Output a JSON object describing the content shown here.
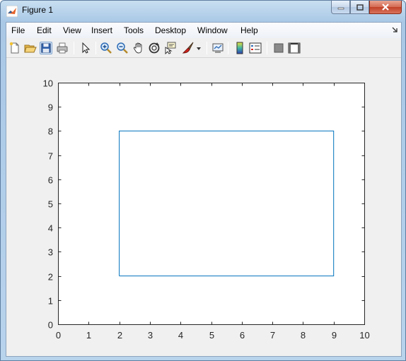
{
  "window": {
    "title": "Figure 1",
    "icon": "matlab-logo-icon",
    "buttons": [
      "minimize-icon",
      "maximize-icon",
      "close-icon"
    ]
  },
  "menubar": {
    "items": [
      "File",
      "Edit",
      "View",
      "Insert",
      "Tools",
      "Desktop",
      "Window",
      "Help"
    ]
  },
  "toolbar": {
    "buttons": [
      "new-figure-icon",
      "open-file-icon",
      "save-icon",
      "print-icon",
      "edit-plot-arrow-icon",
      "zoom-in-icon",
      "zoom-out-icon",
      "pan-hand-icon",
      "rotate-3d-icon",
      "data-cursor-icon",
      "brush-icon",
      "brush-dropdown-icon",
      "link-plot-icon",
      "insert-colorbar-icon",
      "insert-legend-icon",
      "hide-plot-tools-icon",
      "show-plot-tools-icon"
    ]
  },
  "chart_data": {
    "type": "line",
    "title": "",
    "xlabel": "",
    "ylabel": "",
    "xlim": [
      0,
      10
    ],
    "ylim": [
      0,
      10
    ],
    "x_ticks": [
      0,
      1,
      2,
      3,
      4,
      5,
      6,
      7,
      8,
      9,
      10
    ],
    "y_ticks": [
      0,
      1,
      2,
      3,
      4,
      5,
      6,
      7,
      8,
      9,
      10
    ],
    "grid": false,
    "series": [
      {
        "x": [
          2,
          9,
          9,
          2,
          2
        ],
        "y": [
          2,
          2,
          8,
          8,
          2
        ]
      }
    ],
    "colors": {
      "line": "#0072bd",
      "axes": "#262626"
    }
  }
}
